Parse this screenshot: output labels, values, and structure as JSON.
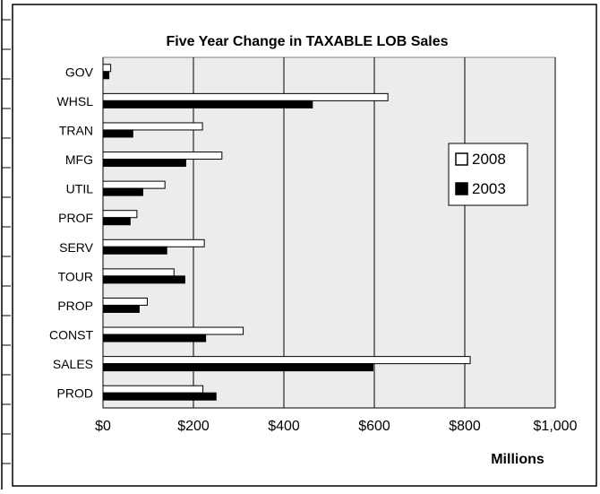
{
  "chart_data": {
    "type": "bar",
    "orientation": "horizontal",
    "title": "Five Year Change in TAXABLE LOB Sales",
    "xlabel": "Millions",
    "ylabel": "",
    "xlim": [
      0,
      1000
    ],
    "x_tick_values": [
      0,
      200,
      400,
      600,
      800,
      1000
    ],
    "x_tick_labels": [
      "$0",
      "$200",
      "$400",
      "$600",
      "$800",
      "$1,000"
    ],
    "grid": "vertical",
    "legend_position": "right",
    "categories": [
      "GOV",
      "WHSL",
      "TRAN",
      "MFG",
      "UTIL",
      "PROF",
      "SERV",
      "TOUR",
      "PROP",
      "CONST",
      "SALES",
      "PROD"
    ],
    "series": [
      {
        "name": "2008",
        "color": "#ffffff",
        "values": [
          17,
          630,
          220,
          263,
          137,
          75,
          224,
          157,
          98,
          310,
          812,
          221
        ]
      },
      {
        "name": "2003",
        "color": "#000000",
        "values": [
          13,
          463,
          66,
          183,
          88,
          60,
          141,
          181,
          80,
          227,
          597,
          250
        ]
      }
    ]
  }
}
